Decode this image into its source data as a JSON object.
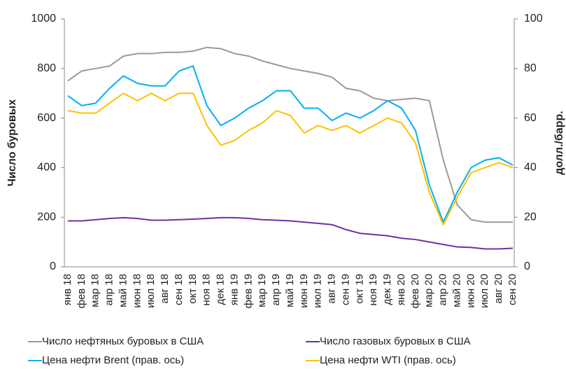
{
  "chart_data": {
    "type": "line",
    "y_label": "Число буровых",
    "y2_label": "долл./барр.",
    "categories": [
      "янв 18",
      "фев 18",
      "мар 18",
      "апр 18",
      "май 18",
      "июн 18",
      "июл 18",
      "авг 18",
      "сен 18",
      "окт 18",
      "ноя 18",
      "дек 18",
      "янв 19",
      "фев 19",
      "мар 19",
      "апр 19",
      "май 19",
      "июн 19",
      "июл 19",
      "авг 19",
      "сен 19",
      "окт 19",
      "ноя 19",
      "дек 19",
      "янв 20",
      "фев 20",
      "мар 20",
      "апр 20",
      "май 20",
      "июн 20",
      "июл 20",
      "авг 20",
      "сен 20"
    ],
    "series": [
      {
        "name": "Число нефтяных буровых в США",
        "color": "#9a9a9a",
        "axis": "y",
        "values": [
          750,
          790,
          800,
          810,
          850,
          860,
          860,
          865,
          865,
          870,
          885,
          880,
          860,
          850,
          830,
          815,
          800,
          790,
          780,
          765,
          720,
          710,
          680,
          670,
          675,
          680,
          670,
          430,
          250,
          190,
          180,
          180,
          180
        ]
      },
      {
        "name": "Число газовых буровых в США",
        "color": "#7030a0",
        "axis": "y",
        "values": [
          185,
          185,
          190,
          195,
          198,
          195,
          188,
          188,
          190,
          192,
          195,
          198,
          198,
          195,
          190,
          188,
          185,
          180,
          175,
          170,
          150,
          135,
          130,
          125,
          115,
          110,
          100,
          90,
          80,
          78,
          72,
          72,
          75
        ]
      },
      {
        "name": "Цена нефти Brent (прав. ось)",
        "color": "#00b0f0",
        "axis": "y2",
        "values": [
          69,
          65,
          66,
          72,
          77,
          74,
          73,
          73,
          79,
          81,
          65,
          57,
          60,
          64,
          67,
          71,
          71,
          64,
          64,
          59,
          62,
          60,
          63,
          67,
          64,
          55,
          33,
          18,
          30,
          40,
          43,
          44,
          41
        ]
      },
      {
        "name": "Цена нефти WTI (прав. ось)",
        "color": "#ffc000",
        "axis": "y2",
        "values": [
          63,
          62,
          62,
          66,
          70,
          67,
          70,
          67,
          70,
          70,
          57,
          49,
          51,
          55,
          58,
          63,
          61,
          54,
          57,
          55,
          57,
          54,
          57,
          60,
          58,
          50,
          30,
          17,
          28,
          38,
          40,
          42,
          40
        ]
      }
    ],
    "ylim": [
      0,
      1000
    ],
    "yticks": [
      0,
      200,
      400,
      600,
      800,
      1000
    ],
    "y2lim": [
      0,
      100
    ],
    "y2ticks": [
      0,
      20,
      40,
      60,
      80,
      100
    ]
  }
}
